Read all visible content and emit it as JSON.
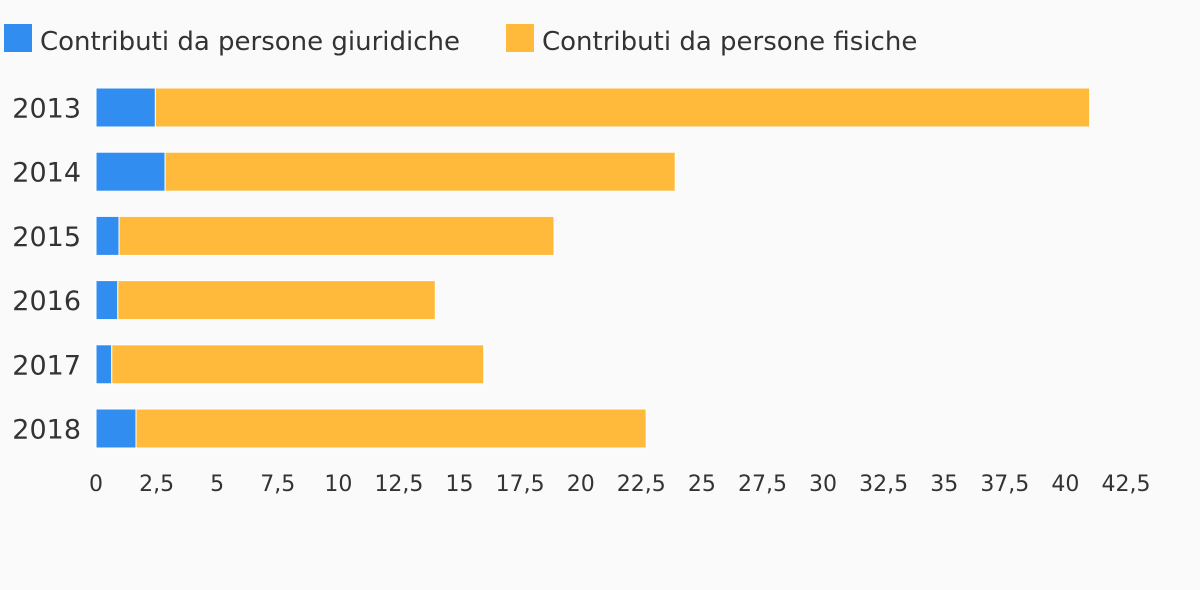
{
  "chart_data": {
    "type": "bar",
    "orientation": "horizontal",
    "stacked": true,
    "title": "",
    "xlabel": "",
    "ylabel": "",
    "categories": [
      "2013",
      "2014",
      "2015",
      "2016",
      "2017",
      "2018"
    ],
    "series": [
      {
        "name": "Contributi da persone giuridiche",
        "color": "#318ef0",
        "values": [
          2.45,
          2.85,
          0.95,
          0.9,
          0.65,
          1.65
        ]
      },
      {
        "name": "Contributi da persone fisiche",
        "color": "#ffba3b",
        "values": [
          38.55,
          21.05,
          17.95,
          13.1,
          15.35,
          21.05
        ]
      }
    ],
    "xlim": [
      0,
      42.5
    ],
    "xticks": [
      "0",
      "2,5",
      "5",
      "7,5",
      "10",
      "12,5",
      "15",
      "17,5",
      "20",
      "22,5",
      "25",
      "27,5",
      "30",
      "32,5",
      "35",
      "37,5",
      "40",
      "42,5"
    ],
    "grid": false,
    "legend": "top-left"
  }
}
